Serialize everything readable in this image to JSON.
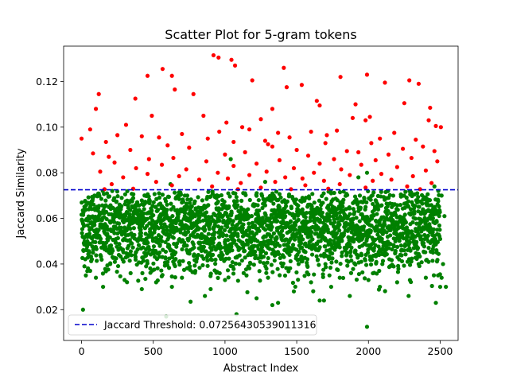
{
  "chart_data": {
    "type": "scatter",
    "title": "Scatter Plot for 5-gram tokens",
    "xlabel": "Abstract Index",
    "ylabel": "Jaccard Similarity",
    "xlim": [
      -125,
      2625
    ],
    "ylim": [
      0.0065,
      0.1355
    ],
    "xticks": [
      0,
      500,
      1000,
      1500,
      2000,
      2500
    ],
    "xtick_labels": [
      "0",
      "500",
      "1000",
      "1500",
      "2000",
      "2500"
    ],
    "yticks": [
      0.02,
      0.04,
      0.06,
      0.08,
      0.1,
      0.12
    ],
    "ytick_labels": [
      "0.02",
      "0.04",
      "0.06",
      "0.08",
      "0.10",
      "0.12"
    ],
    "threshold": 0.07256430539011316,
    "threshold_color": "#0000cc",
    "legend": {
      "label": "Jaccard Threshold: 0.07256430539011316",
      "position": "lower-left"
    },
    "colors": {
      "above_threshold": "#ff0000",
      "below_threshold": "#008000"
    },
    "n_points": 2500,
    "series": [
      {
        "color": "#ff0000",
        "points": [
          [
            920,
            0.1315
          ],
          [
            955,
            0.1305
          ],
          [
            1045,
            0.1295
          ],
          [
            1070,
            0.127
          ],
          [
            1410,
            0.126
          ],
          [
            565,
            0.1255
          ],
          [
            630,
            0.1225
          ],
          [
            460,
            0.1225
          ],
          [
            1990,
            0.123
          ],
          [
            1805,
            0.122
          ],
          [
            1190,
            0.1205
          ],
          [
            2285,
            0.1205
          ],
          [
            2115,
            0.1195
          ],
          [
            2350,
            0.119
          ],
          [
            1535,
            0.1185
          ],
          [
            1430,
            0.1175
          ],
          [
            650,
            0.1165
          ],
          [
            780,
            0.1145
          ],
          [
            120,
            0.1145
          ],
          [
            375,
            0.1125
          ],
          [
            1640,
            0.1115
          ],
          [
            2250,
            0.1105
          ],
          [
            1910,
            0.11
          ],
          [
            1660,
            0.1095
          ],
          [
            2430,
            0.1085
          ],
          [
            100,
            0.108
          ],
          [
            1330,
            0.108
          ],
          [
            850,
            0.105
          ],
          [
            490,
            0.105
          ],
          [
            1890,
            0.104
          ],
          [
            2010,
            0.1045
          ],
          [
            1250,
            0.1035
          ],
          [
            1980,
            0.103
          ],
          [
            2420,
            0.103
          ],
          [
            1010,
            0.102
          ],
          [
            310,
            0.101
          ],
          [
            2505,
            0.1
          ],
          [
            2470,
            0.1005
          ],
          [
            1120,
            0.1
          ],
          [
            1170,
            0.099
          ],
          [
            60,
            0.099
          ],
          [
            1780,
            0.0985
          ],
          [
            1600,
            0.098
          ],
          [
            960,
            0.098
          ],
          [
            1370,
            0.0975
          ],
          [
            2180,
            0.0975
          ],
          [
            700,
            0.097
          ],
          [
            1710,
            0.0965
          ],
          [
            250,
            0.0965
          ],
          [
            420,
            0.096
          ],
          [
            540,
            0.0955
          ],
          [
            1450,
            0.0955
          ],
          [
            2080,
            0.095
          ],
          [
            880,
            0.095
          ],
          [
            0,
            0.095
          ],
          [
            2330,
            0.0945
          ],
          [
            1280,
            0.094
          ],
          [
            1060,
            0.0935
          ],
          [
            170,
            0.0935
          ],
          [
            1700,
            0.093
          ],
          [
            2020,
            0.093
          ],
          [
            1300,
            0.0925
          ],
          [
            600,
            0.092
          ],
          [
            1330,
            0.0915
          ],
          [
            2380,
            0.0915
          ],
          [
            750,
            0.091
          ],
          [
            2240,
            0.0905
          ],
          [
            1500,
            0.09
          ],
          [
            340,
            0.09
          ],
          [
            1850,
            0.0895
          ],
          [
            2460,
            0.0895
          ],
          [
            1140,
            0.089
          ],
          [
            1930,
            0.089
          ],
          [
            80,
            0.0885
          ],
          [
            2140,
            0.088
          ],
          [
            1000,
            0.088
          ],
          [
            1580,
            0.0875
          ],
          [
            190,
            0.087
          ],
          [
            640,
            0.0865
          ],
          [
            2300,
            0.0865
          ],
          [
            1760,
            0.086
          ],
          [
            470,
            0.086
          ],
          [
            1380,
            0.0855
          ],
          [
            2050,
            0.0855
          ],
          [
            870,
            0.085
          ],
          [
            2480,
            0.085
          ],
          [
            230,
            0.0845
          ],
          [
            1220,
            0.084
          ],
          [
            1660,
            0.084
          ],
          [
            560,
            0.0835
          ],
          [
            1950,
            0.0835
          ],
          [
            1060,
            0.083
          ],
          [
            2200,
            0.0825
          ],
          [
            380,
            0.082
          ],
          [
            1480,
            0.082
          ],
          [
            730,
            0.0815
          ],
          [
            1810,
            0.0815
          ],
          [
            2400,
            0.081
          ],
          [
            130,
            0.0805
          ],
          [
            1290,
            0.0805
          ],
          [
            950,
            0.08
          ],
          [
            1620,
            0.08
          ],
          [
            2090,
            0.0795
          ],
          [
            460,
            0.0795
          ],
          [
            1170,
            0.079
          ],
          [
            1870,
            0.079
          ],
          [
            680,
            0.0785
          ],
          [
            2310,
            0.0785
          ],
          [
            1420,
            0.078
          ],
          [
            290,
            0.078
          ],
          [
            1540,
            0.0775
          ],
          [
            1020,
            0.0775
          ],
          [
            2160,
            0.077
          ],
          [
            820,
            0.077
          ],
          [
            1690,
            0.0765
          ],
          [
            2030,
            0.0765
          ],
          [
            520,
            0.076
          ],
          [
            1350,
            0.076
          ],
          [
            2440,
            0.0755
          ],
          [
            1110,
            0.0755
          ],
          [
            210,
            0.075
          ],
          [
            1800,
            0.075
          ],
          [
            630,
            0.0745
          ],
          [
            1560,
            0.0745
          ],
          [
            2270,
            0.074
          ],
          [
            910,
            0.074
          ],
          [
            1250,
            0.0735
          ],
          [
            1980,
            0.0735
          ],
          [
            360,
            0.073
          ],
          [
            1720,
            0.073
          ],
          [
            2360,
            0.0728
          ],
          [
            1090,
            0.0728
          ],
          [
            160,
            0.0728
          ],
          [
            1460,
            0.0728
          ]
        ]
      },
      {
        "color": "#008000",
        "points": [
          [
            10,
            0.02
          ],
          [
            1990,
            0.0125
          ],
          [
            1080,
            0.018
          ],
          [
            1330,
            0.022
          ],
          [
            1370,
            0.023
          ],
          [
            1660,
            0.024
          ],
          [
            1690,
            0.024
          ],
          [
            2470,
            0.023
          ],
          [
            590,
            0.017
          ],
          [
            630,
            0.03
          ],
          [
            760,
            0.0235
          ],
          [
            860,
            0.026
          ],
          [
            1220,
            0.025
          ],
          [
            1870,
            0.026
          ],
          [
            2280,
            0.026
          ],
          [
            2500,
            0.03
          ],
          [
            2540,
            0.03
          ],
          [
            150,
            0.03
          ],
          [
            420,
            0.029
          ],
          [
            900,
            0.029
          ],
          [
            2080,
            0.03
          ],
          [
            1480,
            0.028
          ],
          [
            1740,
            0.03
          ],
          [
            30,
            0.035
          ],
          [
            60,
            0.037
          ],
          [
            100,
            0.034
          ],
          [
            300,
            0.033
          ],
          [
            520,
            0.032
          ],
          [
            700,
            0.034
          ],
          [
            1000,
            0.033
          ],
          [
            1150,
            0.035
          ],
          [
            1300,
            0.034
          ],
          [
            1600,
            0.032
          ],
          [
            1800,
            0.034
          ],
          [
            2000,
            0.033
          ],
          [
            2200,
            0.032
          ],
          [
            2400,
            0.034
          ],
          [
            2510,
            0.034
          ],
          [
            20,
            0.039
          ],
          [
            200,
            0.04
          ],
          [
            450,
            0.039
          ],
          [
            800,
            0.041
          ],
          [
            1100,
            0.04
          ],
          [
            1400,
            0.039
          ],
          [
            1700,
            0.04
          ],
          [
            1950,
            0.041
          ],
          [
            2150,
            0.039
          ],
          [
            2350,
            0.04
          ],
          [
            2520,
            0.04
          ],
          [
            80,
            0.045
          ],
          [
            260,
            0.044
          ],
          [
            500,
            0.046
          ],
          [
            650,
            0.045
          ],
          [
            880,
            0.044
          ],
          [
            1050,
            0.046
          ],
          [
            1250,
            0.045
          ],
          [
            1450,
            0.044
          ],
          [
            1650,
            0.046
          ],
          [
            1850,
            0.045
          ],
          [
            2050,
            0.044
          ],
          [
            2250,
            0.046
          ],
          [
            2450,
            0.045
          ],
          [
            40,
            0.05
          ],
          [
            180,
            0.051
          ],
          [
            350,
            0.049
          ],
          [
            560,
            0.05
          ],
          [
            740,
            0.051
          ],
          [
            960,
            0.049
          ],
          [
            1180,
            0.05
          ],
          [
            1350,
            0.051
          ],
          [
            1560,
            0.049
          ],
          [
            1760,
            0.05
          ],
          [
            1920,
            0.051
          ],
          [
            2120,
            0.049
          ],
          [
            2320,
            0.05
          ],
          [
            2500,
            0.051
          ],
          [
            120,
            0.055
          ],
          [
            300,
            0.056
          ],
          [
            480,
            0.054
          ],
          [
            680,
            0.055
          ],
          [
            920,
            0.056
          ],
          [
            1120,
            0.054
          ],
          [
            1320,
            0.055
          ],
          [
            1520,
            0.056
          ],
          [
            1720,
            0.054
          ],
          [
            1900,
            0.055
          ],
          [
            2100,
            0.056
          ],
          [
            2300,
            0.054
          ],
          [
            2480,
            0.055
          ],
          [
            60,
            0.06
          ],
          [
            240,
            0.061
          ],
          [
            420,
            0.059
          ],
          [
            600,
            0.06
          ],
          [
            820,
            0.061
          ],
          [
            1020,
            0.059
          ],
          [
            1240,
            0.06
          ],
          [
            1420,
            0.061
          ],
          [
            1620,
            0.059
          ],
          [
            1820,
            0.06
          ],
          [
            2020,
            0.061
          ],
          [
            2220,
            0.059
          ],
          [
            2420,
            0.06
          ],
          [
            2530,
            0.061
          ],
          [
            160,
            0.065
          ],
          [
            380,
            0.066
          ],
          [
            580,
            0.064
          ],
          [
            760,
            0.065
          ],
          [
            980,
            0.066
          ],
          [
            1160,
            0.064
          ],
          [
            1380,
            0.065
          ],
          [
            1580,
            0.066
          ],
          [
            1780,
            0.064
          ],
          [
            1980,
            0.065
          ],
          [
            2180,
            0.066
          ],
          [
            2380,
            0.064
          ],
          [
            90,
            0.07
          ],
          [
            280,
            0.069
          ],
          [
            540,
            0.071
          ],
          [
            720,
            0.07
          ],
          [
            940,
            0.069
          ],
          [
            1140,
            0.071
          ],
          [
            1340,
            0.07
          ],
          [
            1540,
            0.069
          ],
          [
            1740,
            0.071
          ],
          [
            1940,
            0.07
          ],
          [
            2140,
            0.069
          ],
          [
            2340,
            0.071
          ],
          [
            2510,
            0.07
          ],
          [
            1040,
            0.086
          ],
          [
            620,
            0.075
          ],
          [
            2460,
            0.074
          ],
          [
            1280,
            0.076
          ],
          [
            1990,
            0.08
          ],
          [
            1930,
            0.078
          ]
        ]
      }
    ]
  }
}
